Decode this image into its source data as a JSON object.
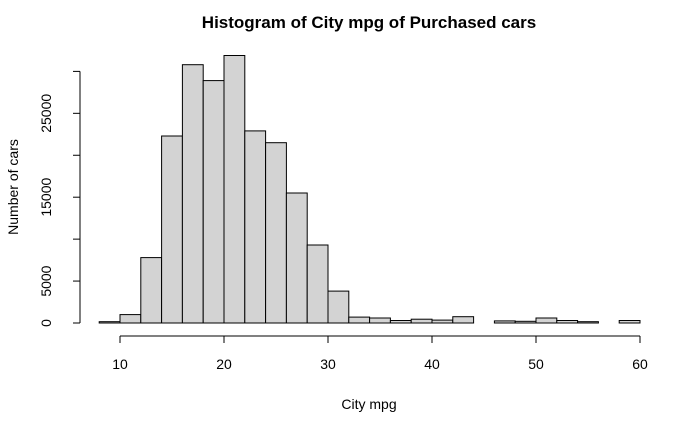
{
  "chart_data": {
    "type": "bar",
    "title": "Histogram of City mpg of Purchased cars",
    "xlabel": "City mpg",
    "ylabel": "Number of cars",
    "bin_edges": [
      8,
      10,
      12,
      14,
      16,
      18,
      20,
      22,
      24,
      26,
      28,
      30,
      32,
      34,
      36,
      38,
      40,
      42,
      44,
      46,
      48,
      50,
      52,
      54,
      56,
      58,
      60
    ],
    "values": [
      150,
      1000,
      7800,
      22300,
      30800,
      28900,
      31900,
      22900,
      21500,
      15500,
      9300,
      3800,
      700,
      600,
      300,
      450,
      350,
      750,
      0,
      250,
      200,
      600,
      300,
      150,
      0,
      300
    ],
    "xlim": [
      8,
      60
    ],
    "ylim": [
      0,
      30000
    ],
    "x_ticks": [
      10,
      20,
      30,
      40,
      50,
      60
    ],
    "y_ticks": [
      0,
      5000,
      15000,
      25000
    ],
    "y_ticks_minor": [
      0,
      10000,
      20000,
      30000
    ],
    "grid": false,
    "legend": "none",
    "colors": {
      "bar_fill": "#d3d3d3",
      "bar_stroke": "#000000"
    }
  }
}
